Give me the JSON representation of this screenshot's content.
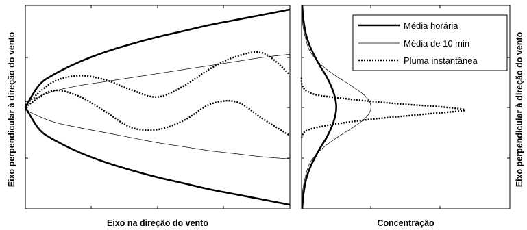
{
  "chart_data": [
    {
      "type": "line",
      "title": "",
      "xlabel": "Eixo na direção do vento",
      "ylabel": "Eixo perpendicular à direção do vento",
      "tick_labels": false,
      "xlim": [
        0,
        1
      ],
      "ylim": [
        -1,
        1
      ],
      "grid": false,
      "series": [
        {
          "name": "Média horária",
          "style": "thick-solid",
          "envelope": "upper",
          "x": [
            0,
            0.05,
            0.1,
            0.2,
            0.3,
            0.4,
            0.5,
            0.6,
            0.7,
            0.8,
            0.9,
            1.0
          ],
          "y": [
            0,
            0.21,
            0.31,
            0.44,
            0.54,
            0.62,
            0.69,
            0.75,
            0.81,
            0.86,
            0.91,
            0.96
          ]
        },
        {
          "name": "Média horária",
          "style": "thick-solid",
          "envelope": "lower",
          "x": [
            0,
            0.05,
            0.1,
            0.2,
            0.3,
            0.4,
            0.5,
            0.6,
            0.7,
            0.8,
            0.9,
            1.0
          ],
          "y": [
            0,
            -0.21,
            -0.31,
            -0.44,
            -0.54,
            -0.62,
            -0.69,
            -0.75,
            -0.81,
            -0.86,
            -0.91,
            -0.96
          ]
        },
        {
          "name": "Média de 10 min",
          "style": "thin-solid",
          "envelope": "upper",
          "x": [
            0,
            0.1,
            0.2,
            0.3,
            0.4,
            0.5,
            0.6,
            0.7,
            0.8,
            0.9,
            1.0
          ],
          "y": [
            0.05,
            0.15,
            0.21,
            0.25,
            0.29,
            0.33,
            0.37,
            0.41,
            0.45,
            0.49,
            0.52
          ]
        },
        {
          "name": "Média de 10 min",
          "style": "thin-solid",
          "envelope": "lower",
          "x": [
            0,
            0.1,
            0.2,
            0.3,
            0.4,
            0.5,
            0.6,
            0.7,
            0.8,
            0.9,
            1.0
          ],
          "y": [
            -0.03,
            -0.14,
            -0.2,
            -0.25,
            -0.3,
            -0.35,
            -0.39,
            -0.43,
            -0.46,
            -0.49,
            -0.51
          ]
        },
        {
          "name": "Pluma instantânea",
          "style": "dotted",
          "envelope": "upper",
          "x": [
            0,
            0.1,
            0.2,
            0.3,
            0.4,
            0.5,
            0.6,
            0.7,
            0.8,
            0.9,
            1.0
          ],
          "y": [
            0.02,
            0.24,
            0.31,
            0.27,
            0.17,
            0.1,
            0.21,
            0.38,
            0.5,
            0.53,
            0.32
          ]
        },
        {
          "name": "Pluma instantânea",
          "style": "dotted",
          "envelope": "lower",
          "x": [
            0,
            0.1,
            0.2,
            0.3,
            0.4,
            0.5,
            0.6,
            0.7,
            0.8,
            0.9,
            1.0
          ],
          "y": [
            0.0,
            0.16,
            0.11,
            -0.04,
            -0.2,
            -0.22,
            -0.13,
            0.03,
            0.05,
            -0.12,
            -0.28
          ]
        }
      ]
    },
    {
      "type": "line",
      "title": "",
      "xlabel": "Concentração",
      "ylabel": "Eixo perpendicular à direção do vento",
      "tick_labels": false,
      "xlim": [
        0,
        3
      ],
      "ylim": [
        -1,
        1
      ],
      "grid": false,
      "legend": {
        "position": "top-right",
        "entries": [
          {
            "label": "Média horária",
            "style": "thick-solid"
          },
          {
            "label": "Média de 10 min",
            "style": "thin-solid"
          },
          {
            "label": "Pluma instantânea",
            "style": "dotted"
          }
        ]
      },
      "series": [
        {
          "name": "Média horária",
          "style": "thick-solid",
          "y": [
            -1.0,
            -0.9,
            -0.8,
            -0.7,
            -0.6,
            -0.5,
            -0.4,
            -0.3,
            -0.2,
            -0.1,
            0.0,
            0.1,
            0.2,
            0.3,
            0.4,
            0.5,
            0.6,
            0.7,
            0.8,
            0.9,
            1.0
          ],
          "x": [
            0.01,
            0.02,
            0.04,
            0.07,
            0.12,
            0.19,
            0.27,
            0.36,
            0.43,
            0.48,
            0.5,
            0.48,
            0.43,
            0.36,
            0.27,
            0.19,
            0.12,
            0.07,
            0.04,
            0.02,
            0.01
          ]
        },
        {
          "name": "Média de 10 min",
          "style": "thin-solid",
          "y": [
            -1.0,
            -0.8,
            -0.6,
            -0.5,
            -0.4,
            -0.3,
            -0.2,
            -0.1,
            0.0,
            0.1,
            0.2,
            0.3,
            0.4,
            0.5,
            0.6,
            0.8,
            1.0
          ],
          "x": [
            0.0,
            0.02,
            0.09,
            0.17,
            0.31,
            0.51,
            0.74,
            0.93,
            1.0,
            0.93,
            0.74,
            0.51,
            0.31,
            0.17,
            0.09,
            0.02,
            0.0
          ]
        },
        {
          "name": "Pluma instantânea",
          "style": "dotted",
          "y": [
            -0.3,
            -0.24,
            -0.2,
            -0.16,
            -0.12,
            -0.09,
            -0.06,
            -0.03,
            0.0,
            0.03,
            0.06,
            0.09,
            0.12,
            0.16,
            0.2,
            0.24,
            0.3
          ],
          "x": [
            0.0,
            0.05,
            0.22,
            0.55,
            1.0,
            1.45,
            1.92,
            2.35,
            2.05,
            1.45,
            0.95,
            0.55,
            0.22,
            0.07,
            0.02,
            0.0,
            0.0
          ]
        }
      ]
    }
  ]
}
